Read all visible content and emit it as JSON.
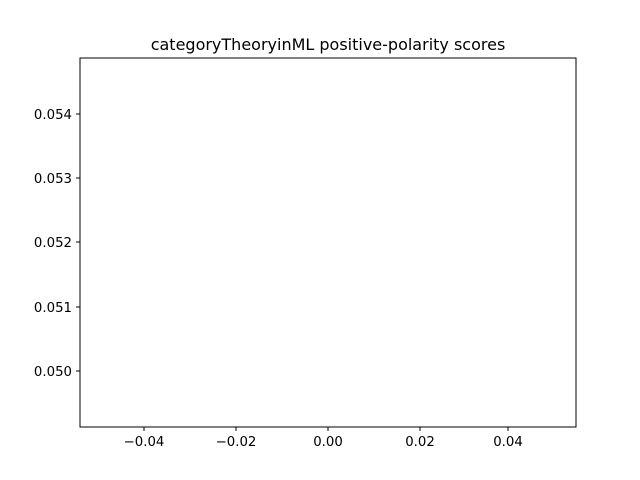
{
  "chart_data": {
    "type": "scatter",
    "title": "categoryTheoryinML positive-polarity scores",
    "xlabel": "",
    "ylabel": "",
    "series": [],
    "xlim": [
      -0.055,
      0.055
    ],
    "ylim": [
      0.04943,
      0.05485
    ],
    "x_ticks": [
      "−0.04",
      "−0.02",
      "0.00",
      "0.02",
      "0.04"
    ],
    "y_ticks": [
      "0.050",
      "0.051",
      "0.052",
      "0.053",
      "0.054"
    ],
    "grid": false,
    "legend": "none"
  }
}
